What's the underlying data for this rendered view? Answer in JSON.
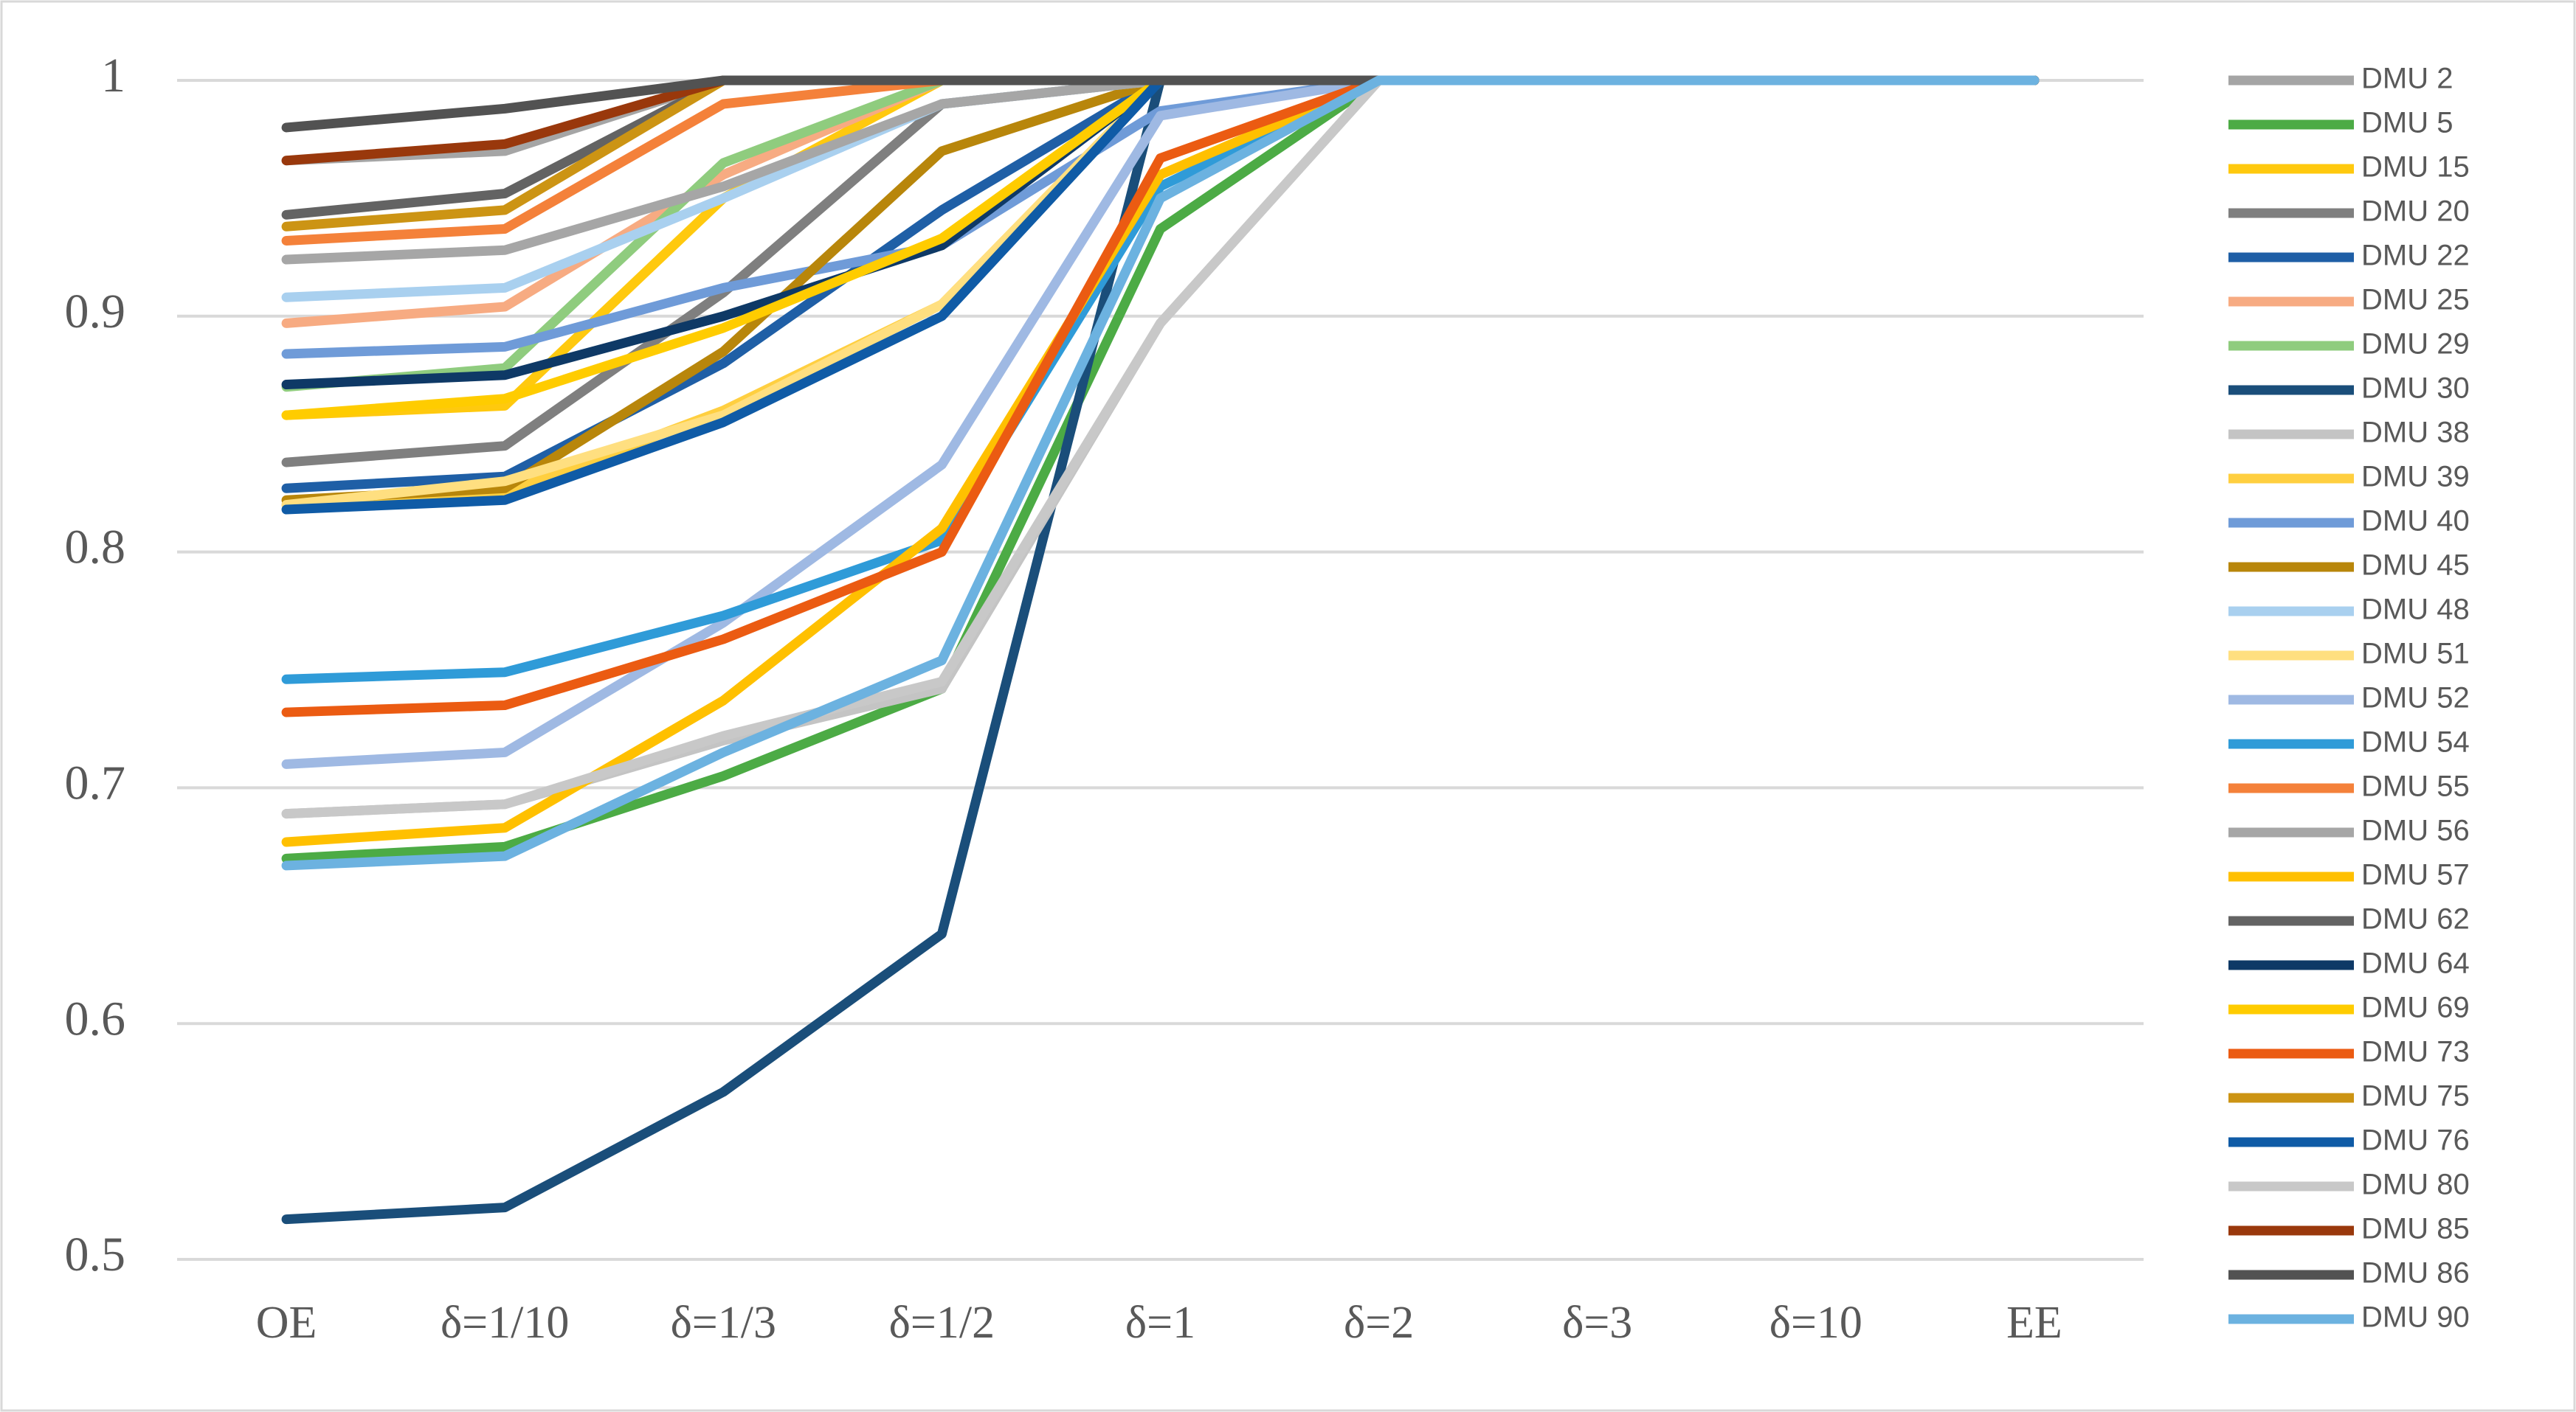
{
  "chart_data": {
    "type": "line",
    "categories": [
      "OE",
      "δ=1/10",
      "δ=1/3",
      "δ=1/2",
      "δ=1",
      "δ=2",
      "δ=3",
      "δ=10",
      "EE"
    ],
    "ylim": [
      0.5,
      1
    ],
    "yticks": [
      0.5,
      0.6,
      0.7,
      0.8,
      0.9,
      1
    ],
    "grid": true,
    "legend": "right",
    "series": [
      {
        "name": "DMU 2",
        "color": "#a5a5a5",
        "values": [
          0.966,
          0.97,
          1,
          1,
          1,
          1,
          1,
          1,
          1
        ]
      },
      {
        "name": "DMU 5",
        "color": "#4cab45",
        "values": [
          0.67,
          0.675,
          0.705,
          0.742,
          0.937,
          1,
          1,
          1,
          1
        ]
      },
      {
        "name": "DMU 15",
        "color": "#ffc90e",
        "values": [
          0.858,
          0.862,
          0.95,
          1,
          1,
          1,
          1,
          1,
          1
        ]
      },
      {
        "name": "DMU 20",
        "color": "#7f7f7f",
        "values": [
          0.838,
          0.845,
          0.91,
          0.99,
          1,
          1,
          1,
          1,
          1
        ]
      },
      {
        "name": "DMU 22",
        "color": "#1f5fa6",
        "values": [
          0.827,
          0.832,
          0.88,
          0.945,
          1,
          1,
          1,
          1,
          1
        ]
      },
      {
        "name": "DMU 25",
        "color": "#f7ab82",
        "values": [
          0.897,
          0.904,
          0.96,
          1,
          1,
          1,
          1,
          1,
          1
        ]
      },
      {
        "name": "DMU 29",
        "color": "#8fcc7e",
        "values": [
          0.87,
          0.878,
          0.965,
          1,
          1,
          1,
          1,
          1,
          1
        ]
      },
      {
        "name": "DMU 30",
        "color": "#1a4e7a",
        "values": [
          0.517,
          0.522,
          0.571,
          0.638,
          1,
          1,
          1,
          1,
          1
        ]
      },
      {
        "name": "DMU 38",
        "color": "#c4c4c4",
        "values": [
          0.689,
          0.693,
          0.72,
          0.742,
          0.897,
          1,
          1,
          1,
          1
        ]
      },
      {
        "name": "DMU 39",
        "color": "#ffcf40",
        "values": [
          0.82,
          0.825,
          0.86,
          0.905,
          1,
          1,
          1,
          1,
          1
        ]
      },
      {
        "name": "DMU 40",
        "color": "#6f9bd8",
        "values": [
          0.884,
          0.887,
          0.912,
          0.93,
          0.987,
          1,
          1,
          1,
          1
        ]
      },
      {
        "name": "DMU 45",
        "color": "#b8860b",
        "values": [
          0.822,
          0.827,
          0.885,
          0.97,
          1,
          1,
          1,
          1,
          1
        ]
      },
      {
        "name": "DMU 48",
        "color": "#a9d0ef",
        "values": [
          0.908,
          0.912,
          0.95,
          0.99,
          1,
          1,
          1,
          1,
          1
        ]
      },
      {
        "name": "DMU 51",
        "color": "#ffdf80",
        "values": [
          0.82,
          0.83,
          0.858,
          0.905,
          1,
          1,
          1,
          1,
          1
        ]
      },
      {
        "name": "DMU 52",
        "color": "#9fb9e3",
        "values": [
          0.71,
          0.715,
          0.77,
          0.837,
          0.985,
          1,
          1,
          1,
          1
        ]
      },
      {
        "name": "DMU 54",
        "color": "#2f9bd8",
        "values": [
          0.746,
          0.749,
          0.773,
          0.805,
          0.955,
          1,
          1,
          1,
          1
        ]
      },
      {
        "name": "DMU 55",
        "color": "#f4813a",
        "values": [
          0.932,
          0.937,
          0.99,
          1,
          1,
          1,
          1,
          1,
          1
        ]
      },
      {
        "name": "DMU 56",
        "color": "#a6a6a6",
        "values": [
          0.924,
          0.928,
          0.955,
          0.99,
          1,
          1,
          1,
          1,
          1
        ]
      },
      {
        "name": "DMU 57",
        "color": "#ffc000",
        "values": [
          0.677,
          0.683,
          0.737,
          0.81,
          0.96,
          1,
          1,
          1,
          1
        ]
      },
      {
        "name": "DMU 62",
        "color": "#636363",
        "values": [
          0.943,
          0.952,
          1,
          1,
          1,
          1,
          1,
          1,
          1
        ]
      },
      {
        "name": "DMU 64",
        "color": "#0e3966",
        "values": [
          0.871,
          0.875,
          0.9,
          0.93,
          1,
          1,
          1,
          1,
          1
        ]
      },
      {
        "name": "DMU 69",
        "color": "#ffcc00",
        "values": [
          0.858,
          0.865,
          0.895,
          0.933,
          1,
          1,
          1,
          1,
          1
        ]
      },
      {
        "name": "DMU 73",
        "color": "#eb5b12",
        "values": [
          0.732,
          0.735,
          0.763,
          0.8,
          0.967,
          1,
          1,
          1,
          1
        ]
      },
      {
        "name": "DMU 75",
        "color": "#cc9414",
        "values": [
          0.938,
          0.945,
          1,
          1,
          1,
          1,
          1,
          1,
          1
        ]
      },
      {
        "name": "DMU 76",
        "color": "#0f5ba6",
        "values": [
          0.818,
          0.822,
          0.855,
          0.9,
          1,
          1,
          1,
          1,
          1
        ]
      },
      {
        "name": "DMU 80",
        "color": "#c8c8c8",
        "values": [
          0.689,
          0.693,
          0.722,
          0.745,
          0.897,
          1,
          1,
          1,
          1
        ]
      },
      {
        "name": "DMU 85",
        "color": "#99380c",
        "values": [
          0.966,
          0.973,
          1,
          1,
          1,
          1,
          1,
          1,
          1
        ]
      },
      {
        "name": "DMU 86",
        "color": "#525252",
        "values": [
          0.98,
          0.988,
          1,
          1,
          1,
          1,
          1,
          1,
          1
        ]
      },
      {
        "name": "DMU 90",
        "color": "#6cb2e0",
        "values": [
          0.667,
          0.671,
          0.715,
          0.754,
          0.95,
          1,
          1,
          1,
          1
        ]
      }
    ]
  }
}
